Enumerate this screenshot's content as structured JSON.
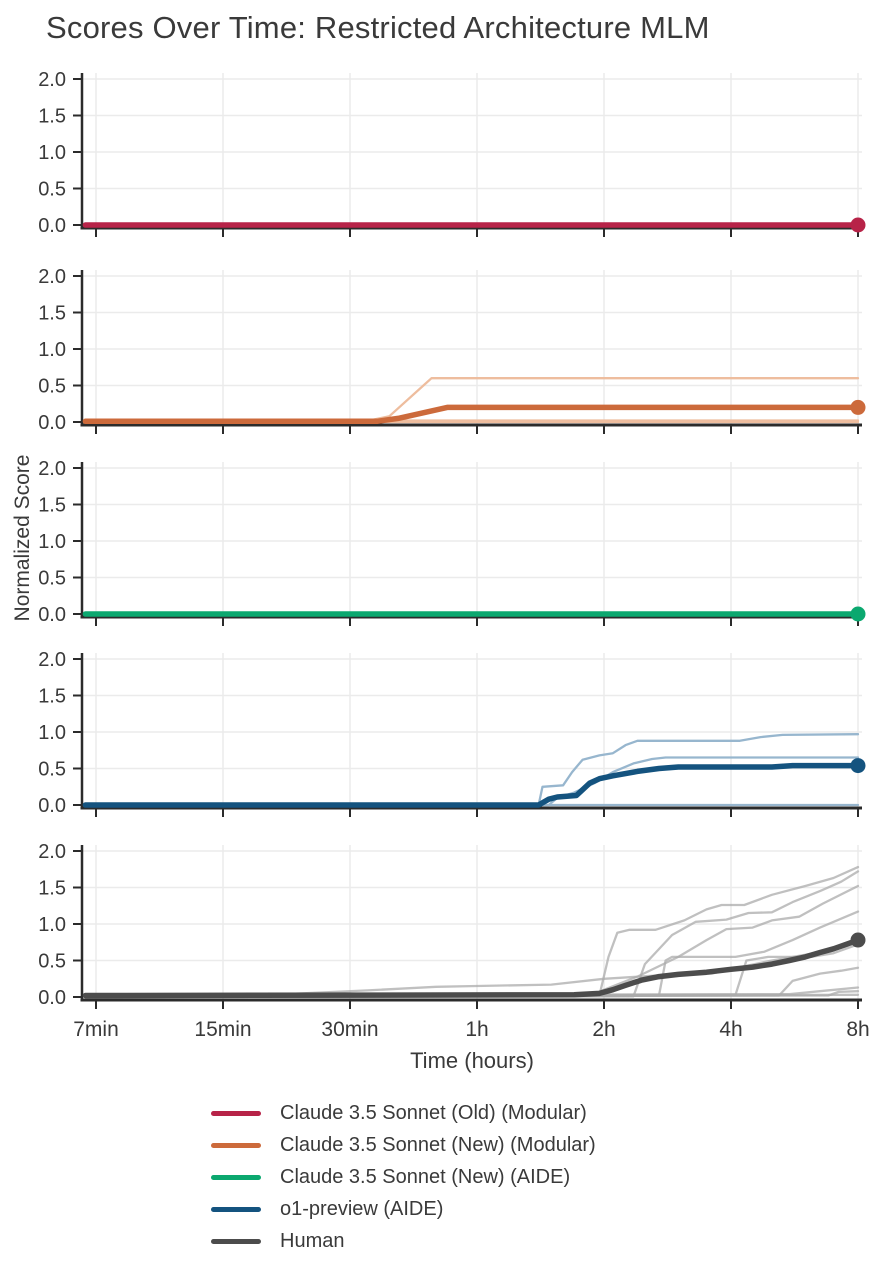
{
  "title": "Scores Over Time: Restricted Architecture MLM",
  "axes": {
    "xlabel": "Time (hours)",
    "ylabel": "Normalized Score"
  },
  "legend": {
    "items": [
      {
        "label": "Claude 3.5 Sonnet (Old) (Modular)",
        "color": "#b72348"
      },
      {
        "label": "Claude 3.5 Sonnet (New) (Modular)",
        "color": "#cc6a3b"
      },
      {
        "label": "Claude 3.5 Sonnet (New) (AIDE)",
        "color": "#0ba86f"
      },
      {
        "label": "o1-preview (AIDE)",
        "color": "#14537f"
      },
      {
        "label": "Human",
        "color": "#4c4c4c"
      }
    ]
  },
  "chart_data": {
    "type": "line",
    "title": "Scores Over Time: Restricted Architecture MLM",
    "xlabel": "Time (hours)",
    "ylabel": "Normalized Score",
    "x_scale": "log2",
    "x_unit": "hours",
    "ylim": [
      0,
      2.05
    ],
    "grid": true,
    "legend_position": "bottom",
    "x_ticks": [
      {
        "t": 0.125,
        "label": "7min"
      },
      {
        "t": 0.25,
        "label": "15min"
      },
      {
        "t": 0.5,
        "label": "30min"
      },
      {
        "t": 1,
        "label": "1h"
      },
      {
        "t": 2,
        "label": "2h"
      },
      {
        "t": 4,
        "label": "4h"
      },
      {
        "t": 8,
        "label": "8h"
      }
    ],
    "y_ticks": [
      {
        "v": 0.0,
        "label": "0.0"
      },
      {
        "v": 0.5,
        "label": "0.5"
      },
      {
        "v": 1.0,
        "label": "1.0"
      },
      {
        "v": 1.5,
        "label": "1.5"
      },
      {
        "v": 2.0,
        "label": "2.0"
      }
    ],
    "panels": [
      {
        "name": "Claude 3.5 Sonnet (Old) (Modular)",
        "slug": "claude-3-5-sonnet-old-modular",
        "color": "#b72348",
        "light_color": "#e5a8ba",
        "runs": [
          [
            [
              0.118,
              0
            ],
            [
              8,
              0
            ]
          ],
          [
            [
              0.118,
              0
            ],
            [
              8,
              0
            ]
          ],
          [
            [
              0.118,
              0
            ],
            [
              8,
              0
            ]
          ]
        ],
        "mean": [
          [
            0.118,
            0
          ],
          [
            8,
            0
          ]
        ],
        "end_dot": [
          8,
          0
        ]
      },
      {
        "name": "Claude 3.5 Sonnet (New) (Modular)",
        "slug": "claude-3-5-sonnet-new-modular",
        "color": "#cc6a3b",
        "light_color": "#eebd9e",
        "runs": [
          [
            [
              0.118,
              0.015
            ],
            [
              0.55,
              0.015
            ],
            [
              0.62,
              0.08
            ],
            [
              0.78,
              0.6
            ],
            [
              8,
              0.6
            ]
          ],
          [
            [
              0.118,
              0.02
            ],
            [
              8,
              0.02
            ]
          ],
          [
            [
              0.118,
              0
            ],
            [
              8,
              0
            ]
          ]
        ],
        "mean": [
          [
            0.118,
            0.01
          ],
          [
            0.58,
            0.01
          ],
          [
            0.65,
            0.05
          ],
          [
            0.85,
            0.2
          ],
          [
            8,
            0.2
          ]
        ],
        "end_dot": [
          8,
          0.2
        ]
      },
      {
        "name": "Claude 3.5 Sonnet (New) (AIDE)",
        "slug": "claude-3-5-sonnet-new-aide",
        "color": "#0ba86f",
        "light_color": "#9fd9bf",
        "runs": [
          [
            [
              0.118,
              0
            ],
            [
              8,
              0
            ]
          ],
          [
            [
              0.118,
              0
            ],
            [
              8,
              0
            ]
          ],
          [
            [
              0.118,
              0
            ],
            [
              8,
              0
            ]
          ]
        ],
        "mean": [
          [
            0.118,
            0
          ],
          [
            8,
            0
          ]
        ],
        "end_dot": [
          8,
          0
        ]
      },
      {
        "name": "o1-preview (AIDE)",
        "slug": "o1-preview-aide",
        "color": "#14537f",
        "light_color": "#97b6ce",
        "runs": [
          [
            [
              0.118,
              0
            ],
            [
              1.4,
              0
            ],
            [
              1.43,
              0.25
            ],
            [
              1.6,
              0.27
            ],
            [
              1.68,
              0.45
            ],
            [
              1.78,
              0.62
            ],
            [
              1.95,
              0.68
            ],
            [
              2.1,
              0.71
            ],
            [
              2.25,
              0.82
            ],
            [
              2.4,
              0.88
            ],
            [
              4.2,
              0.88
            ],
            [
              4.7,
              0.93
            ],
            [
              5.3,
              0.96
            ],
            [
              8,
              0.97
            ]
          ],
          [
            [
              0.118,
              0
            ],
            [
              1.48,
              0
            ],
            [
              1.55,
              0.1
            ],
            [
              1.7,
              0.17
            ],
            [
              1.9,
              0.3
            ],
            [
              2.1,
              0.45
            ],
            [
              2.35,
              0.57
            ],
            [
              2.6,
              0.63
            ],
            [
              2.8,
              0.65
            ],
            [
              8,
              0.65
            ]
          ],
          [
            [
              0.118,
              0
            ],
            [
              8,
              0
            ]
          ]
        ],
        "mean": [
          [
            0.118,
            0
          ],
          [
            1.4,
            0
          ],
          [
            1.48,
            0.08
          ],
          [
            1.55,
            0.11
          ],
          [
            1.72,
            0.13
          ],
          [
            1.85,
            0.3
          ],
          [
            1.95,
            0.36
          ],
          [
            2.1,
            0.4
          ],
          [
            2.4,
            0.46
          ],
          [
            2.7,
            0.5
          ],
          [
            3,
            0.52
          ],
          [
            5,
            0.52
          ],
          [
            5.6,
            0.54
          ],
          [
            8,
            0.54
          ]
        ],
        "end_dot": [
          8,
          0.54
        ]
      },
      {
        "name": "Human",
        "slug": "human",
        "color": "#4c4c4c",
        "light_color": "#ababab",
        "runs": [
          [
            [
              0.118,
              0.02
            ],
            [
              0.35,
              0.04
            ],
            [
              0.55,
              0.09
            ],
            [
              0.8,
              0.14
            ],
            [
              1,
              0.15
            ],
            [
              1.5,
              0.17
            ],
            [
              2,
              0.25
            ],
            [
              2.6,
              0.29
            ],
            [
              3.6,
              0.32
            ],
            [
              4.3,
              0.42
            ],
            [
              5,
              0.5
            ],
            [
              6,
              0.58
            ],
            [
              7,
              0.65
            ],
            [
              8,
              0.75
            ]
          ],
          [
            [
              0.118,
              0
            ],
            [
              1.95,
              0.02
            ],
            [
              2.05,
              0.55
            ],
            [
              2.15,
              0.88
            ],
            [
              2.3,
              0.92
            ],
            [
              2.65,
              0.92
            ],
            [
              3.1,
              1.05
            ],
            [
              3.5,
              1.2
            ],
            [
              3.8,
              1.26
            ],
            [
              4.3,
              1.26
            ],
            [
              5,
              1.4
            ],
            [
              6,
              1.52
            ],
            [
              7,
              1.63
            ],
            [
              8,
              1.78
            ]
          ],
          [
            [
              0.118,
              0
            ],
            [
              2.35,
              0.01
            ],
            [
              2.5,
              0.45
            ],
            [
              2.9,
              0.85
            ],
            [
              3.3,
              1.03
            ],
            [
              3.9,
              1.06
            ],
            [
              4.4,
              1.15
            ],
            [
              5,
              1.16
            ],
            [
              5.6,
              1.3
            ],
            [
              6.5,
              1.45
            ],
            [
              7.3,
              1.58
            ],
            [
              8,
              1.72
            ]
          ],
          [
            [
              0.118,
              0
            ],
            [
              1.85,
              0.02
            ],
            [
              2.4,
              0.28
            ],
            [
              3,
              0.55
            ],
            [
              3.5,
              0.78
            ],
            [
              3.9,
              0.93
            ],
            [
              4.5,
              0.95
            ],
            [
              5,
              1.05
            ],
            [
              5.8,
              1.1
            ],
            [
              6.6,
              1.28
            ],
            [
              8,
              1.52
            ]
          ],
          [
            [
              0.118,
              0
            ],
            [
              2.7,
              0.02
            ],
            [
              2.8,
              0.5
            ],
            [
              2.9,
              0.55
            ],
            [
              4.1,
              0.55
            ],
            [
              4.8,
              0.62
            ],
            [
              5.6,
              0.78
            ],
            [
              6.5,
              0.95
            ],
            [
              8,
              1.17
            ]
          ],
          [
            [
              0.118,
              0
            ],
            [
              4.1,
              0.03
            ],
            [
              4.35,
              0.5
            ],
            [
              4.9,
              0.55
            ],
            [
              6.2,
              0.55
            ],
            [
              7,
              0.6
            ],
            [
              8,
              0.72
            ]
          ],
          [
            [
              0.118,
              0
            ],
            [
              5.2,
              0.02
            ],
            [
              5.6,
              0.22
            ],
            [
              6.5,
              0.32
            ],
            [
              7.3,
              0.36
            ],
            [
              8,
              0.4
            ]
          ],
          [
            [
              0.118,
              0.02
            ],
            [
              5.5,
              0.04
            ],
            [
              6.5,
              0.08
            ],
            [
              8,
              0.13
            ]
          ],
          [
            [
              0.118,
              0
            ],
            [
              6.8,
              0.02
            ],
            [
              7.2,
              0.07
            ],
            [
              8,
              0.08
            ]
          ],
          [
            [
              0.118,
              0
            ],
            [
              8,
              0.03
            ]
          ]
        ],
        "mean": [
          [
            0.118,
            0.02
          ],
          [
            1.7,
            0.03
          ],
          [
            1.95,
            0.05
          ],
          [
            2.1,
            0.1
          ],
          [
            2.25,
            0.16
          ],
          [
            2.45,
            0.23
          ],
          [
            2.7,
            0.28
          ],
          [
            3,
            0.31
          ],
          [
            3.5,
            0.34
          ],
          [
            4,
            0.38
          ],
          [
            4.5,
            0.41
          ],
          [
            5,
            0.45
          ],
          [
            5.5,
            0.5
          ],
          [
            6,
            0.55
          ],
          [
            6.5,
            0.61
          ],
          [
            7,
            0.66
          ],
          [
            7.5,
            0.72
          ],
          [
            8,
            0.78
          ]
        ],
        "end_dot": [
          8,
          0.78
        ]
      }
    ],
    "style": {
      "grid_color": "#ebebeb",
      "spine_color": "#2b2b2b",
      "text_color": "#3a3a3a"
    }
  }
}
